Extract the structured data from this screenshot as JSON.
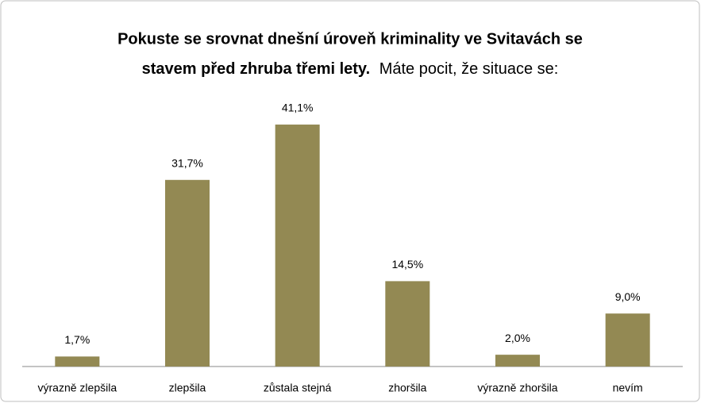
{
  "chart_data": {
    "type": "bar",
    "title": [
      "Pokuste se srovnat dnešní úroveň kriminality ve Svitavách se",
      "stavem před zhruba třemi lety."
    ],
    "subtitle": "Máte pocit, že situace se:",
    "categories": [
      "výrazně zlepšila",
      "zlepšila",
      "zůstala stejná",
      "zhoršila",
      "výrazně zhoršila",
      "nevím"
    ],
    "values": [
      1.7,
      31.7,
      41.1,
      14.5,
      2.0,
      9.0
    ],
    "value_labels": [
      "1,7%",
      "31,7%",
      "41,1%",
      "14,5%",
      "2,0%",
      "9,0%"
    ],
    "color": "#938953"
  }
}
